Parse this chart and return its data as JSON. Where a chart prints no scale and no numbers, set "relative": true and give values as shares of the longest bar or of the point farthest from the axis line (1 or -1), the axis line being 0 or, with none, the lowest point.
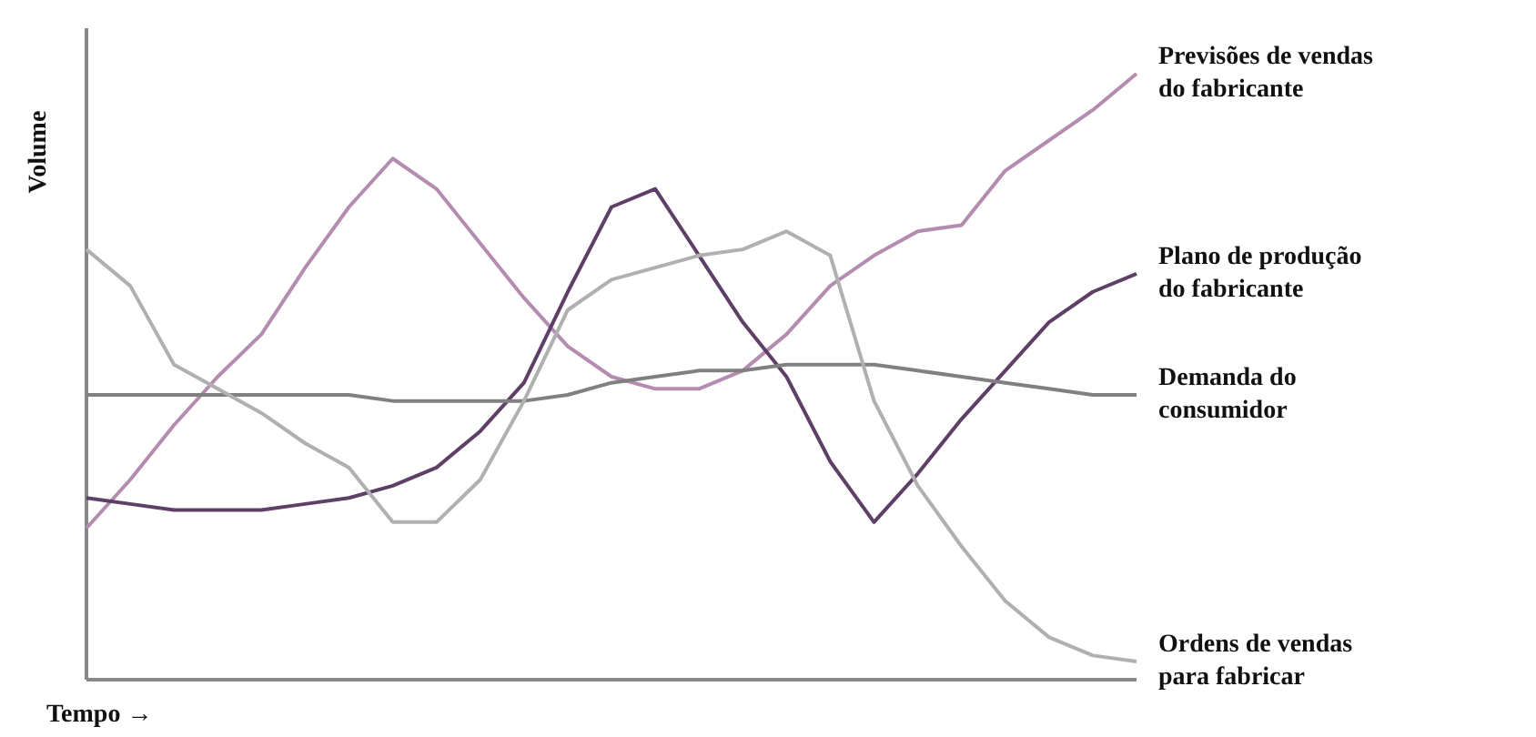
{
  "chart_data": {
    "type": "line",
    "relative": true,
    "xlabel": "Tempo →",
    "ylabel": "Volume",
    "legend": false,
    "categories": [
      null,
      null,
      null,
      null,
      null,
      null,
      null,
      null,
      null,
      null,
      null,
      null,
      null,
      null,
      null,
      null,
      null,
      null,
      null,
      null,
      null,
      null,
      null,
      null,
      null
    ],
    "series": [
      {
        "name": "Previsões de vendas do fabricante",
        "color": "#b48cb0",
        "values": [
          0.25,
          0.33,
          0.42,
          0.5,
          0.57,
          0.68,
          0.78,
          0.86,
          0.81,
          0.72,
          0.63,
          0.55,
          0.5,
          0.48,
          0.48,
          0.51,
          0.57,
          0.65,
          0.7,
          0.74,
          0.75,
          0.84,
          0.89,
          0.94,
          1.0
        ]
      },
      {
        "name": "Plano de produção do fabricante",
        "color": "#5e3f66",
        "values": [
          0.3,
          0.29,
          0.28,
          0.28,
          0.28,
          0.29,
          0.3,
          0.32,
          0.35,
          0.41,
          0.49,
          0.64,
          0.78,
          0.81,
          0.7,
          0.59,
          0.5,
          0.36,
          0.26,
          0.34,
          0.43,
          0.51,
          0.59,
          0.64,
          0.67
        ]
      },
      {
        "name": "Demanda do consumidor",
        "color": "#808080",
        "values": [
          0.47,
          0.47,
          0.47,
          0.47,
          0.47,
          0.47,
          0.47,
          0.46,
          0.46,
          0.46,
          0.46,
          0.47,
          0.49,
          0.5,
          0.51,
          0.51,
          0.52,
          0.52,
          0.52,
          0.51,
          0.5,
          0.49,
          0.48,
          0.47,
          0.47
        ]
      },
      {
        "name": "Ordens de vendas para fabricar",
        "color": "#b0b0b0",
        "values": [
          0.71,
          0.65,
          0.52,
          0.48,
          0.44,
          0.39,
          0.35,
          0.26,
          0.26,
          0.33,
          0.46,
          0.61,
          0.66,
          0.68,
          0.7,
          0.71,
          0.74,
          0.7,
          0.46,
          0.32,
          0.22,
          0.13,
          0.07,
          0.04,
          0.03
        ]
      }
    ]
  }
}
